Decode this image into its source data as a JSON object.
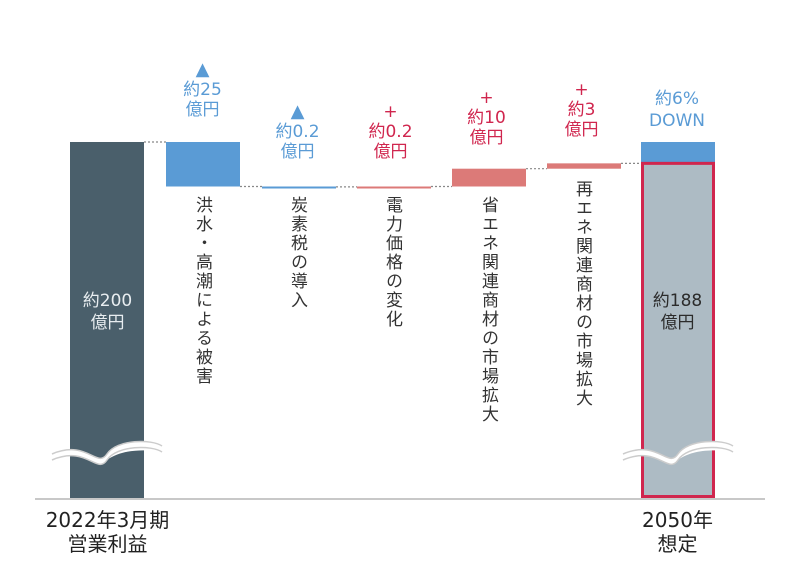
{
  "chart_data": {
    "type": "waterfall",
    "title": "",
    "xlabel": "",
    "ylabel": "",
    "unit": "億円",
    "axis_break": true,
    "colors": {
      "start_bar": "#4a5f6b",
      "decrease": "#5a9bd5",
      "increase": "#dc7a78",
      "end_bar_fill": "#adbbc4",
      "end_bar_border": "#d0264e",
      "decrease_text": "#5a9bd5",
      "increase_text": "#d0264e"
    },
    "bars": [
      {
        "id": "start",
        "kind": "total",
        "value": 200,
        "inner_label": [
          "約200",
          "億円"
        ],
        "xlabel": [
          "2022年3月期",
          "営業利益"
        ]
      },
      {
        "id": "flood",
        "kind": "decrease",
        "value": -25,
        "sign": "▲",
        "label": [
          "約25",
          "億円"
        ],
        "category": "洪水・高潮による被害"
      },
      {
        "id": "carbon-tax",
        "kind": "decrease",
        "value": -0.2,
        "sign": "▲",
        "label": [
          "約0.2",
          "億円"
        ],
        "category": "炭素税の導入"
      },
      {
        "id": "power-price",
        "kind": "increase",
        "value": 0.2,
        "sign": "+",
        "label": [
          "約0.2",
          "億円"
        ],
        "category": "電力価格の変化"
      },
      {
        "id": "energy-saving",
        "kind": "increase",
        "value": 10,
        "sign": "+",
        "label": [
          "約10",
          "億円"
        ],
        "category": "省エネ関連商材の市場拡大"
      },
      {
        "id": "renewable",
        "kind": "increase",
        "value": 3,
        "sign": "+",
        "label": [
          "約3",
          "億円"
        ],
        "category": "再エネ関連商材の市場拡大"
      },
      {
        "id": "end",
        "kind": "total",
        "value": 188,
        "inner_label": [
          "約188",
          "億円"
        ],
        "top_label": [
          "約6%",
          "DOWN"
        ],
        "xlabel": [
          "2050年",
          "想定"
        ]
      }
    ]
  }
}
